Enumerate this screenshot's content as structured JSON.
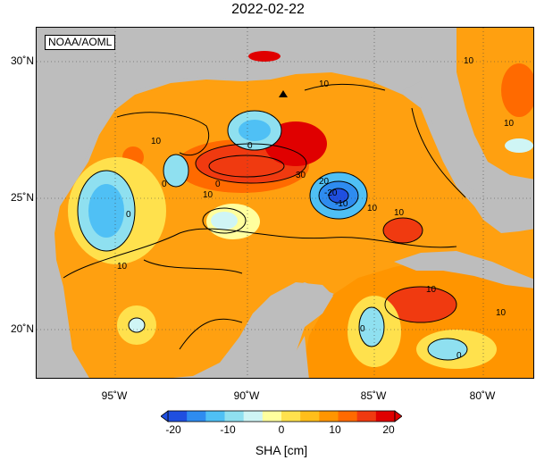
{
  "title": "2022-02-22",
  "credit": "NOAA/AOML",
  "lat_labels": [
    "30˚N",
    "25˚N",
    "20˚N"
  ],
  "lon_labels": [
    "95˚W",
    "90˚W",
    "85˚W",
    "80˚W"
  ],
  "contour_labels": {
    "c1": "10",
    "c2": "10",
    "c3": "0",
    "c4": "10",
    "c5": "30",
    "c6": "20",
    "c7": "10",
    "c8": "-10",
    "c9": "-20",
    "c10": "10",
    "c11": "0",
    "c12": "0",
    "c13": "10",
    "c14": "0",
    "c15": "10",
    "c16": "0",
    "c17": "10",
    "c18": "10",
    "c19": "0",
    "c20": "10"
  },
  "colorbar": {
    "title": "SHA [cm]",
    "ticks": [
      "-20",
      "-10",
      "0",
      "10",
      "20"
    ],
    "colors": [
      "#1f4fe0",
      "#2e8cf0",
      "#4fc0f5",
      "#8fe0f0",
      "#cff5f5",
      "#ffff9e",
      "#ffe14d",
      "#ffbe1a",
      "#ff9500",
      "#ff6a00",
      "#f03a10",
      "#e00000"
    ]
  },
  "colors": {
    "land": "#bdbdbd",
    "ocean_base": "#ffa010",
    "contour": "#000000"
  }
}
